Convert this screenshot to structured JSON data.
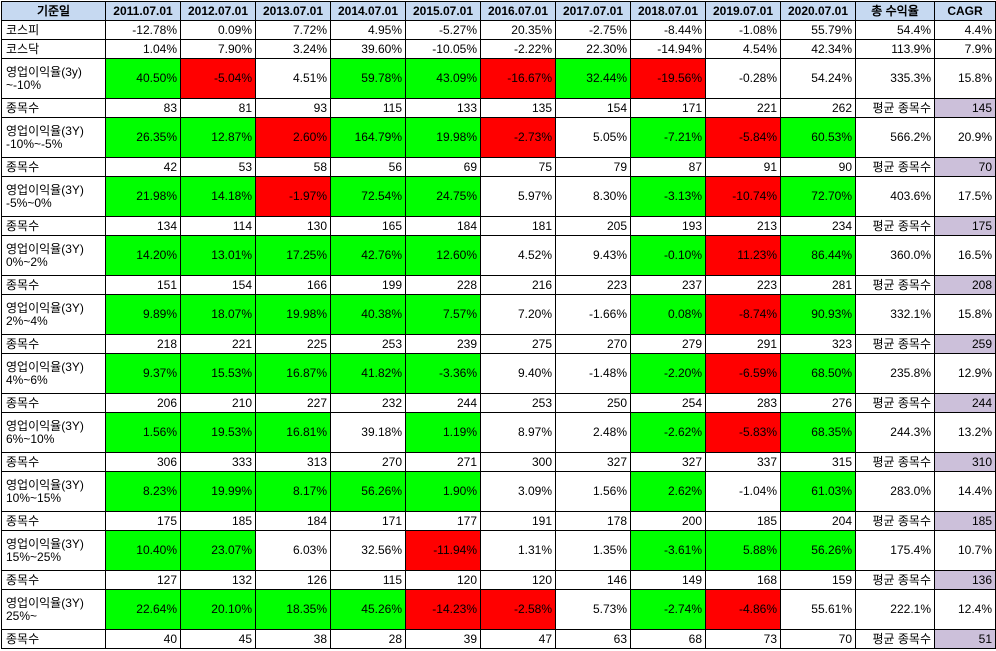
{
  "header": {
    "first": "기준일",
    "years": [
      "2011.07.01",
      "2012.07.01",
      "2013.07.01",
      "2014.07.01",
      "2015.07.01",
      "2016.07.01",
      "2017.07.01",
      "2018.07.01",
      "2019.07.01",
      "2020.07.01"
    ],
    "total": "총 수익율",
    "cagr": "CAGR"
  },
  "colors": {
    "positive": "#00ff00",
    "negative": "#ff0000",
    "header": "#c6d9f1",
    "avg": "#ccc0da"
  },
  "indices": [
    {
      "label": "코스피",
      "values": [
        "-12.78%",
        "0.09%",
        "7.72%",
        "4.95%",
        "-5.27%",
        "20.35%",
        "-2.75%",
        "-8.44%",
        "-1.08%",
        "55.79%"
      ],
      "total": "54.4%",
      "cagr": "4.4%"
    },
    {
      "label": "코스닥",
      "values": [
        "1.04%",
        "7.90%",
        "3.24%",
        "39.60%",
        "-10.05%",
        "-2.22%",
        "22.30%",
        "-14.94%",
        "4.54%",
        "42.34%"
      ],
      "total": "113.9%",
      "cagr": "7.9%"
    }
  ],
  "groups": [
    {
      "label": [
        "영업이익율(3y)",
        "~-10%"
      ],
      "values": [
        "40.50%",
        "-5.04%",
        "4.51%",
        "59.78%",
        "43.09%",
        "-16.67%",
        "32.44%",
        "-19.56%",
        "-0.28%",
        "54.24%"
      ],
      "colors": [
        "g",
        "r",
        "",
        "g",
        "g",
        "r",
        "g",
        "r",
        "",
        ""
      ],
      "total": "335.3%",
      "cagr": "15.8%",
      "count_label": "종목수",
      "counts": [
        "83",
        "81",
        "93",
        "115",
        "133",
        "135",
        "154",
        "171",
        "221",
        "262"
      ],
      "avg_label": "평균 종목수",
      "avg": "145"
    },
    {
      "label": [
        "영업이익율(3Y)",
        "-10%~-5%"
      ],
      "values": [
        "26.35%",
        "12.87%",
        "2.60%",
        "164.79%",
        "19.98%",
        "-2.73%",
        "5.05%",
        "-7.21%",
        "-5.84%",
        "60.53%"
      ],
      "colors": [
        "g",
        "g",
        "r",
        "g",
        "g",
        "r",
        "",
        "g",
        "r",
        "g"
      ],
      "total": "566.2%",
      "cagr": "20.9%",
      "count_label": "종목수",
      "counts": [
        "42",
        "53",
        "58",
        "56",
        "69",
        "75",
        "79",
        "87",
        "91",
        "90"
      ],
      "avg_label": "평균 종목수",
      "avg": "70"
    },
    {
      "label": [
        "영업이익율(3Y)",
        "-5%~0%"
      ],
      "values": [
        "21.98%",
        "14.18%",
        "-1.97%",
        "72.54%",
        "24.75%",
        "5.97%",
        "8.30%",
        "-3.13%",
        "-10.74%",
        "72.70%"
      ],
      "colors": [
        "g",
        "g",
        "r",
        "g",
        "g",
        "",
        "",
        "g",
        "r",
        "g"
      ],
      "total": "403.6%",
      "cagr": "17.5%",
      "count_label": "종목수",
      "counts": [
        "134",
        "114",
        "130",
        "165",
        "184",
        "181",
        "205",
        "193",
        "213",
        "234"
      ],
      "avg_label": "평균 종목수",
      "avg": "175"
    },
    {
      "label": [
        "영업이익율(3Y)",
        "0%~2%"
      ],
      "values": [
        "14.20%",
        "13.01%",
        "17.25%",
        "42.76%",
        "12.60%",
        "4.52%",
        "9.43%",
        "-0.10%",
        "11.23%",
        "86.44%"
      ],
      "colors": [
        "g",
        "g",
        "g",
        "g",
        "g",
        "",
        "",
        "g",
        "r",
        "g"
      ],
      "total": "360.0%",
      "cagr": "16.5%",
      "count_label": "종목수",
      "counts": [
        "151",
        "154",
        "166",
        "199",
        "228",
        "216",
        "223",
        "237",
        "223",
        "281"
      ],
      "avg_label": "평균 종목수",
      "avg": "208"
    },
    {
      "label": [
        "영업이익율(3Y)",
        "2%~4%"
      ],
      "values": [
        "9.89%",
        "18.07%",
        "19.98%",
        "40.38%",
        "7.57%",
        "7.20%",
        "-1.66%",
        "0.08%",
        "-8.74%",
        "90.93%"
      ],
      "colors": [
        "g",
        "g",
        "g",
        "g",
        "g",
        "",
        "",
        "g",
        "r",
        "g"
      ],
      "total": "332.1%",
      "cagr": "15.8%",
      "count_label": "종목수",
      "counts": [
        "218",
        "221",
        "225",
        "253",
        "239",
        "275",
        "270",
        "279",
        "291",
        "323"
      ],
      "avg_label": "평균 종목수",
      "avg": "259"
    },
    {
      "label": [
        "영업이익율(3Y)",
        "4%~6%"
      ],
      "values": [
        "9.37%",
        "15.53%",
        "16.87%",
        "41.82%",
        "-3.36%",
        "9.40%",
        "-1.48%",
        "-2.20%",
        "-6.59%",
        "68.50%"
      ],
      "colors": [
        "g",
        "g",
        "g",
        "g",
        "g",
        "",
        "",
        "g",
        "r",
        "g"
      ],
      "total": "235.8%",
      "cagr": "12.9%",
      "count_label": "종목수",
      "counts": [
        "206",
        "210",
        "227",
        "232",
        "244",
        "253",
        "250",
        "254",
        "283",
        "276"
      ],
      "avg_label": "평균 종목수",
      "avg": "244"
    },
    {
      "label": [
        "영업이익율(3Y)",
        "6%~10%"
      ],
      "values": [
        "1.56%",
        "19.53%",
        "16.81%",
        "39.18%",
        "1.19%",
        "8.97%",
        "2.48%",
        "-2.62%",
        "-5.83%",
        "68.35%"
      ],
      "colors": [
        "g",
        "g",
        "g",
        "",
        "g",
        "",
        "",
        "g",
        "r",
        "g"
      ],
      "total": "244.3%",
      "cagr": "13.2%",
      "count_label": "종목수",
      "counts": [
        "306",
        "333",
        "313",
        "270",
        "271",
        "300",
        "327",
        "327",
        "337",
        "315"
      ],
      "avg_label": "평균 종목수",
      "avg": "310"
    },
    {
      "label": [
        "영업이익율(3Y)",
        "10%~15%"
      ],
      "values": [
        "8.23%",
        "19.99%",
        "8.17%",
        "56.26%",
        "1.90%",
        "3.09%",
        "1.56%",
        "2.62%",
        "-1.04%",
        "61.03%"
      ],
      "colors": [
        "g",
        "g",
        "g",
        "g",
        "g",
        "",
        "",
        "g",
        "",
        "g"
      ],
      "total": "283.0%",
      "cagr": "14.4%",
      "count_label": "종목수",
      "counts": [
        "175",
        "185",
        "184",
        "171",
        "177",
        "191",
        "178",
        "200",
        "185",
        "204"
      ],
      "avg_label": "평균 종목수",
      "avg": "185"
    },
    {
      "label": [
        "영업이익율(3Y)",
        "15%~25%"
      ],
      "values": [
        "10.40%",
        "23.07%",
        "6.03%",
        "32.56%",
        "-11.94%",
        "1.31%",
        "1.35%",
        "-3.61%",
        "5.88%",
        "56.26%"
      ],
      "colors": [
        "g",
        "g",
        "",
        "",
        "r",
        "",
        "",
        "g",
        "g",
        "g"
      ],
      "total": "175.4%",
      "cagr": "10.7%",
      "count_label": "종목수",
      "counts": [
        "127",
        "132",
        "126",
        "115",
        "120",
        "120",
        "146",
        "149",
        "168",
        "159"
      ],
      "avg_label": "평균 종목수",
      "avg": "136"
    },
    {
      "label": [
        "영업이익율(3Y)",
        "25%~"
      ],
      "values": [
        "22.64%",
        "20.10%",
        "18.35%",
        "45.26%",
        "-14.23%",
        "-2.58%",
        "5.73%",
        "-2.74%",
        "-4.86%",
        "55.61%"
      ],
      "colors": [
        "g",
        "g",
        "g",
        "g",
        "r",
        "r",
        "",
        "g",
        "r",
        ""
      ],
      "total": "222.1%",
      "cagr": "12.4%",
      "count_label": "종목수",
      "counts": [
        "40",
        "45",
        "38",
        "28",
        "39",
        "47",
        "63",
        "68",
        "73",
        "70"
      ],
      "avg_label": "평균 종목수",
      "avg": "51"
    }
  ]
}
